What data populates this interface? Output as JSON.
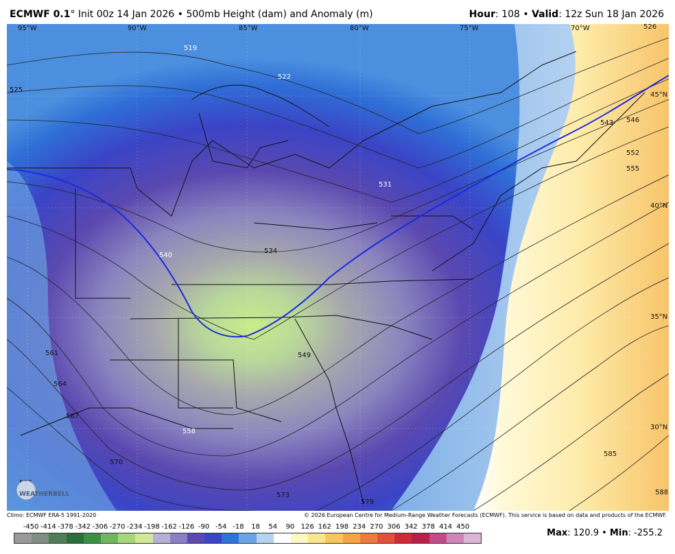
{
  "header": {
    "model": "ECMWF 0.1",
    "degree": "°",
    "init": " Init 00z 14 Jan 2026",
    "sep": " • ",
    "product": "500mb Height (dam) and Anomaly (m)",
    "hour_label": "Hour",
    "hour_value": ": 108",
    "valid_label": "Valid",
    "valid_value": ": 12z Sun 18 Jan 2026"
  },
  "map": {
    "lon_labels": [
      "95°W",
      "90°W",
      "85°W",
      "80°W",
      "75°W",
      "70°W"
    ],
    "lat_labels": [
      "45°N",
      "40°N",
      "35°N",
      "30°N"
    ],
    "contour_labels": [
      "519",
      "522",
      "525",
      "526",
      "531",
      "534",
      "540",
      "543",
      "546",
      "549",
      "552",
      "555",
      "558",
      "561",
      "564",
      "567",
      "570",
      "573",
      "576",
      "579",
      "585",
      "588"
    ],
    "logo_text": "WEATHERBELL",
    "colors": {
      "trough": "#6a5fb4",
      "ridge": "#fde9a0",
      "line_540": "#1a2bdc",
      "contour": "#222222"
    }
  },
  "footer": {
    "climo": "Climo: ECMWF ERA-5 1991-2020",
    "copyright": "© 2026 European Centre for Medium-Range Weather Forecasts (ECMWF). This service is based on data and products of the ECMWF."
  },
  "colorbar": {
    "ticks": [
      "-450",
      "-414",
      "-378",
      "-342",
      "-306",
      "-270",
      "-234",
      "-198",
      "-162",
      "-126",
      "-90",
      "-54",
      "-18",
      "18",
      "54",
      "90",
      "126",
      "162",
      "198",
      "234",
      "270",
      "306",
      "342",
      "378",
      "414",
      "450"
    ],
    "colors": [
      "#9a9a9a",
      "#7e8e85",
      "#4f7e58",
      "#2a6e3a",
      "#3d8f46",
      "#6fb65e",
      "#a7d67c",
      "#cfe89a",
      "#b7b0d6",
      "#8a7fc4",
      "#5c49b0",
      "#3a46c8",
      "#2f72d8",
      "#6aa4e4",
      "#b6d4f0",
      "#ffffff",
      "#fff6c2",
      "#fbe48f",
      "#f7c661",
      "#f3a444",
      "#ec7b3d",
      "#e3503c",
      "#cf2a35",
      "#b81f48",
      "#c14b8c",
      "#cf86b8",
      "#dbb5d6"
    ]
  },
  "stats": {
    "max_label": "Max",
    "max_value": ": 120.9",
    "sep": " • ",
    "min_label": "Min",
    "min_value": ": -255.2"
  }
}
